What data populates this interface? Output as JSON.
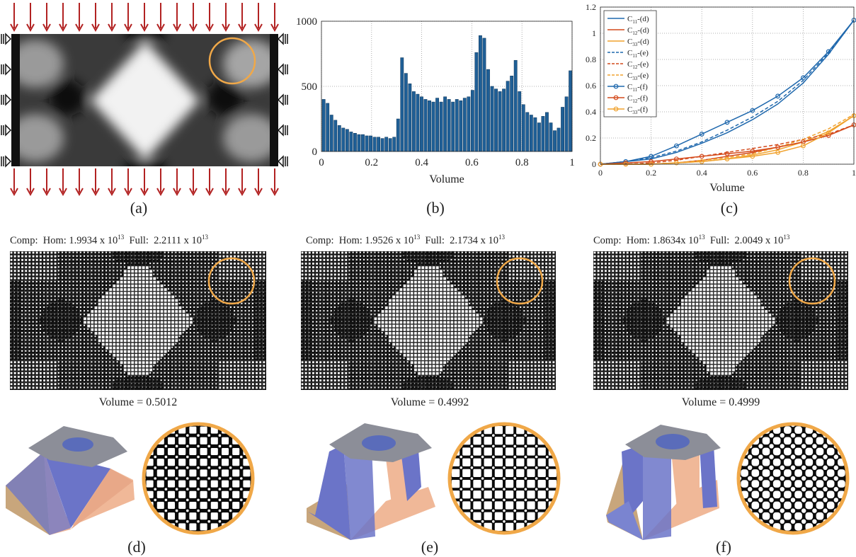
{
  "captions": [
    "(a)",
    "(b)",
    "(c)",
    "(d)",
    "(e)",
    "(f)"
  ],
  "chart_data": [
    {
      "type": "bar",
      "xlabel": "Volume",
      "ylabel": "",
      "xlim": [
        0,
        1
      ],
      "ylim": [
        0,
        1000
      ],
      "xticks": [
        "0",
        "0.2",
        "0.4",
        "0.6",
        "0.8",
        "1"
      ],
      "yticks": [
        "0",
        "500",
        "1000"
      ],
      "grid": true,
      "color": "#1f5f96",
      "bin_start": 0.0,
      "bin_width": 0.02,
      "values": [
        400,
        370,
        280,
        240,
        200,
        180,
        170,
        150,
        140,
        130,
        130,
        120,
        120,
        110,
        110,
        100,
        110,
        100,
        110,
        250,
        720,
        600,
        520,
        460,
        440,
        420,
        400,
        390,
        380,
        410,
        380,
        420,
        400,
        380,
        400,
        390,
        410,
        420,
        470,
        760,
        890,
        870,
        630,
        500,
        480,
        460,
        480,
        540,
        580,
        700,
        460,
        360,
        300,
        280,
        260,
        220,
        270,
        300,
        220,
        160,
        180,
        340,
        420,
        620
      ]
    },
    {
      "type": "line",
      "xlabel": "Volume",
      "ylabel": "",
      "xlim": [
        0,
        1
      ],
      "ylim": [
        0,
        1.2
      ],
      "xticks": [
        "0",
        "0.2",
        "0.4",
        "0.6",
        "0.8",
        "1"
      ],
      "yticks": [
        "0",
        "0.2",
        "0.4",
        "0.6",
        "0.8",
        "1",
        "1.2"
      ],
      "grid": true,
      "legend_position": "top-left",
      "x": [
        0,
        0.1,
        0.2,
        0.3,
        0.4,
        0.5,
        0.6,
        0.7,
        0.8,
        0.9,
        1.0
      ],
      "series": [
        {
          "name": "C11-(d)",
          "label_main": "C",
          "label_sub": "11",
          "label_tail": "-(d)",
          "color": "#1f68ad",
          "style": "solid",
          "marker": false,
          "values": [
            0.0,
            0.02,
            0.04,
            0.09,
            0.16,
            0.24,
            0.34,
            0.46,
            0.62,
            0.84,
            1.1
          ]
        },
        {
          "name": "C12-(d)",
          "label_main": "C",
          "label_sub": "12",
          "label_tail": "-(d)",
          "color": "#d44a1c",
          "style": "solid",
          "marker": false,
          "values": [
            0.0,
            0.0,
            0.0,
            0.01,
            0.03,
            0.06,
            0.09,
            0.13,
            0.17,
            0.22,
            0.3
          ]
        },
        {
          "name": "C33-(d)",
          "label_main": "C",
          "label_sub": "33",
          "label_tail": "-(d)",
          "color": "#f0a22e",
          "style": "solid",
          "marker": false,
          "values": [
            0.0,
            0.0,
            0.0,
            0.01,
            0.02,
            0.04,
            0.07,
            0.11,
            0.17,
            0.25,
            0.37
          ]
        },
        {
          "name": "C11-(e)",
          "label_main": "C",
          "label_sub": "11",
          "label_tail": "-(e)",
          "color": "#1f68ad",
          "style": "dashed",
          "marker": false,
          "values": [
            0.0,
            0.02,
            0.05,
            0.1,
            0.17,
            0.26,
            0.36,
            0.48,
            0.64,
            0.85,
            1.1
          ]
        },
        {
          "name": "C12-(e)",
          "label_main": "C",
          "label_sub": "12",
          "label_tail": "-(e)",
          "color": "#d44a1c",
          "style": "dashed",
          "marker": false,
          "values": [
            0.0,
            0.0,
            0.01,
            0.03,
            0.06,
            0.09,
            0.12,
            0.15,
            0.19,
            0.23,
            0.3
          ]
        },
        {
          "name": "C33-(e)",
          "label_main": "C",
          "label_sub": "33",
          "label_tail": "-(e)",
          "color": "#f0a22e",
          "style": "dashed",
          "marker": false,
          "values": [
            0.0,
            0.0,
            0.0,
            0.01,
            0.03,
            0.05,
            0.08,
            0.13,
            0.19,
            0.27,
            0.38
          ]
        },
        {
          "name": "C11-(f)",
          "label_main": "C",
          "label_sub": "11",
          "label_tail": "-(f)",
          "color": "#1f68ad",
          "style": "solid",
          "marker": true,
          "values": [
            0.0,
            0.02,
            0.06,
            0.14,
            0.23,
            0.32,
            0.41,
            0.52,
            0.66,
            0.86,
            1.1
          ]
        },
        {
          "name": "C12-(f)",
          "label_main": "C",
          "label_sub": "12",
          "label_tail": "-(f)",
          "color": "#d44a1c",
          "style": "solid",
          "marker": true,
          "values": [
            0.0,
            0.01,
            0.02,
            0.04,
            0.06,
            0.08,
            0.1,
            0.13,
            0.17,
            0.22,
            0.3
          ]
        },
        {
          "name": "C33-(f)",
          "label_main": "C",
          "label_sub": "33",
          "label_tail": "-(f)",
          "color": "#f0a22e",
          "style": "solid",
          "marker": true,
          "values": [
            0.0,
            0.0,
            0.0,
            0.01,
            0.02,
            0.04,
            0.06,
            0.09,
            0.14,
            0.24,
            0.37
          ]
        }
      ]
    }
  ],
  "panels": [
    {
      "comp_prefix": "Comp:",
      "hom_label": "Hom:",
      "hom_value": "1.9934 x 10",
      "hom_exp": "13",
      "full_label": "Full:",
      "full_value": "2.2111 x 10",
      "full_exp": "13",
      "volume": "Volume = 0.5012"
    },
    {
      "comp_prefix": "Comp:",
      "hom_label": "Hom:",
      "hom_value": "1.9526 x 10",
      "hom_exp": "13",
      "full_label": "Full:",
      "full_value": "2.1734 x 10",
      "full_exp": "13",
      "volume": "Volume = 0.4992"
    },
    {
      "comp_prefix": "Comp:",
      "hom_label": "Hom:",
      "hom_value": "1.8634x 10",
      "hom_exp": "13",
      "full_label": "Full:",
      "full_value": "2.0049 x 10",
      "full_exp": "13",
      "volume": "Volume = 0.4999"
    }
  ],
  "colors": {
    "load_arrow": "#b22222",
    "highlight_circle": "#f0a848",
    "unit_side_tan": "#c8a67c",
    "unit_side_salmon": "#f0b898",
    "unit_blue": "#6b74c8",
    "unit_grey": "#8c8e98"
  },
  "icons": [
    "load-arrow-icon",
    "roller-support-icon"
  ]
}
